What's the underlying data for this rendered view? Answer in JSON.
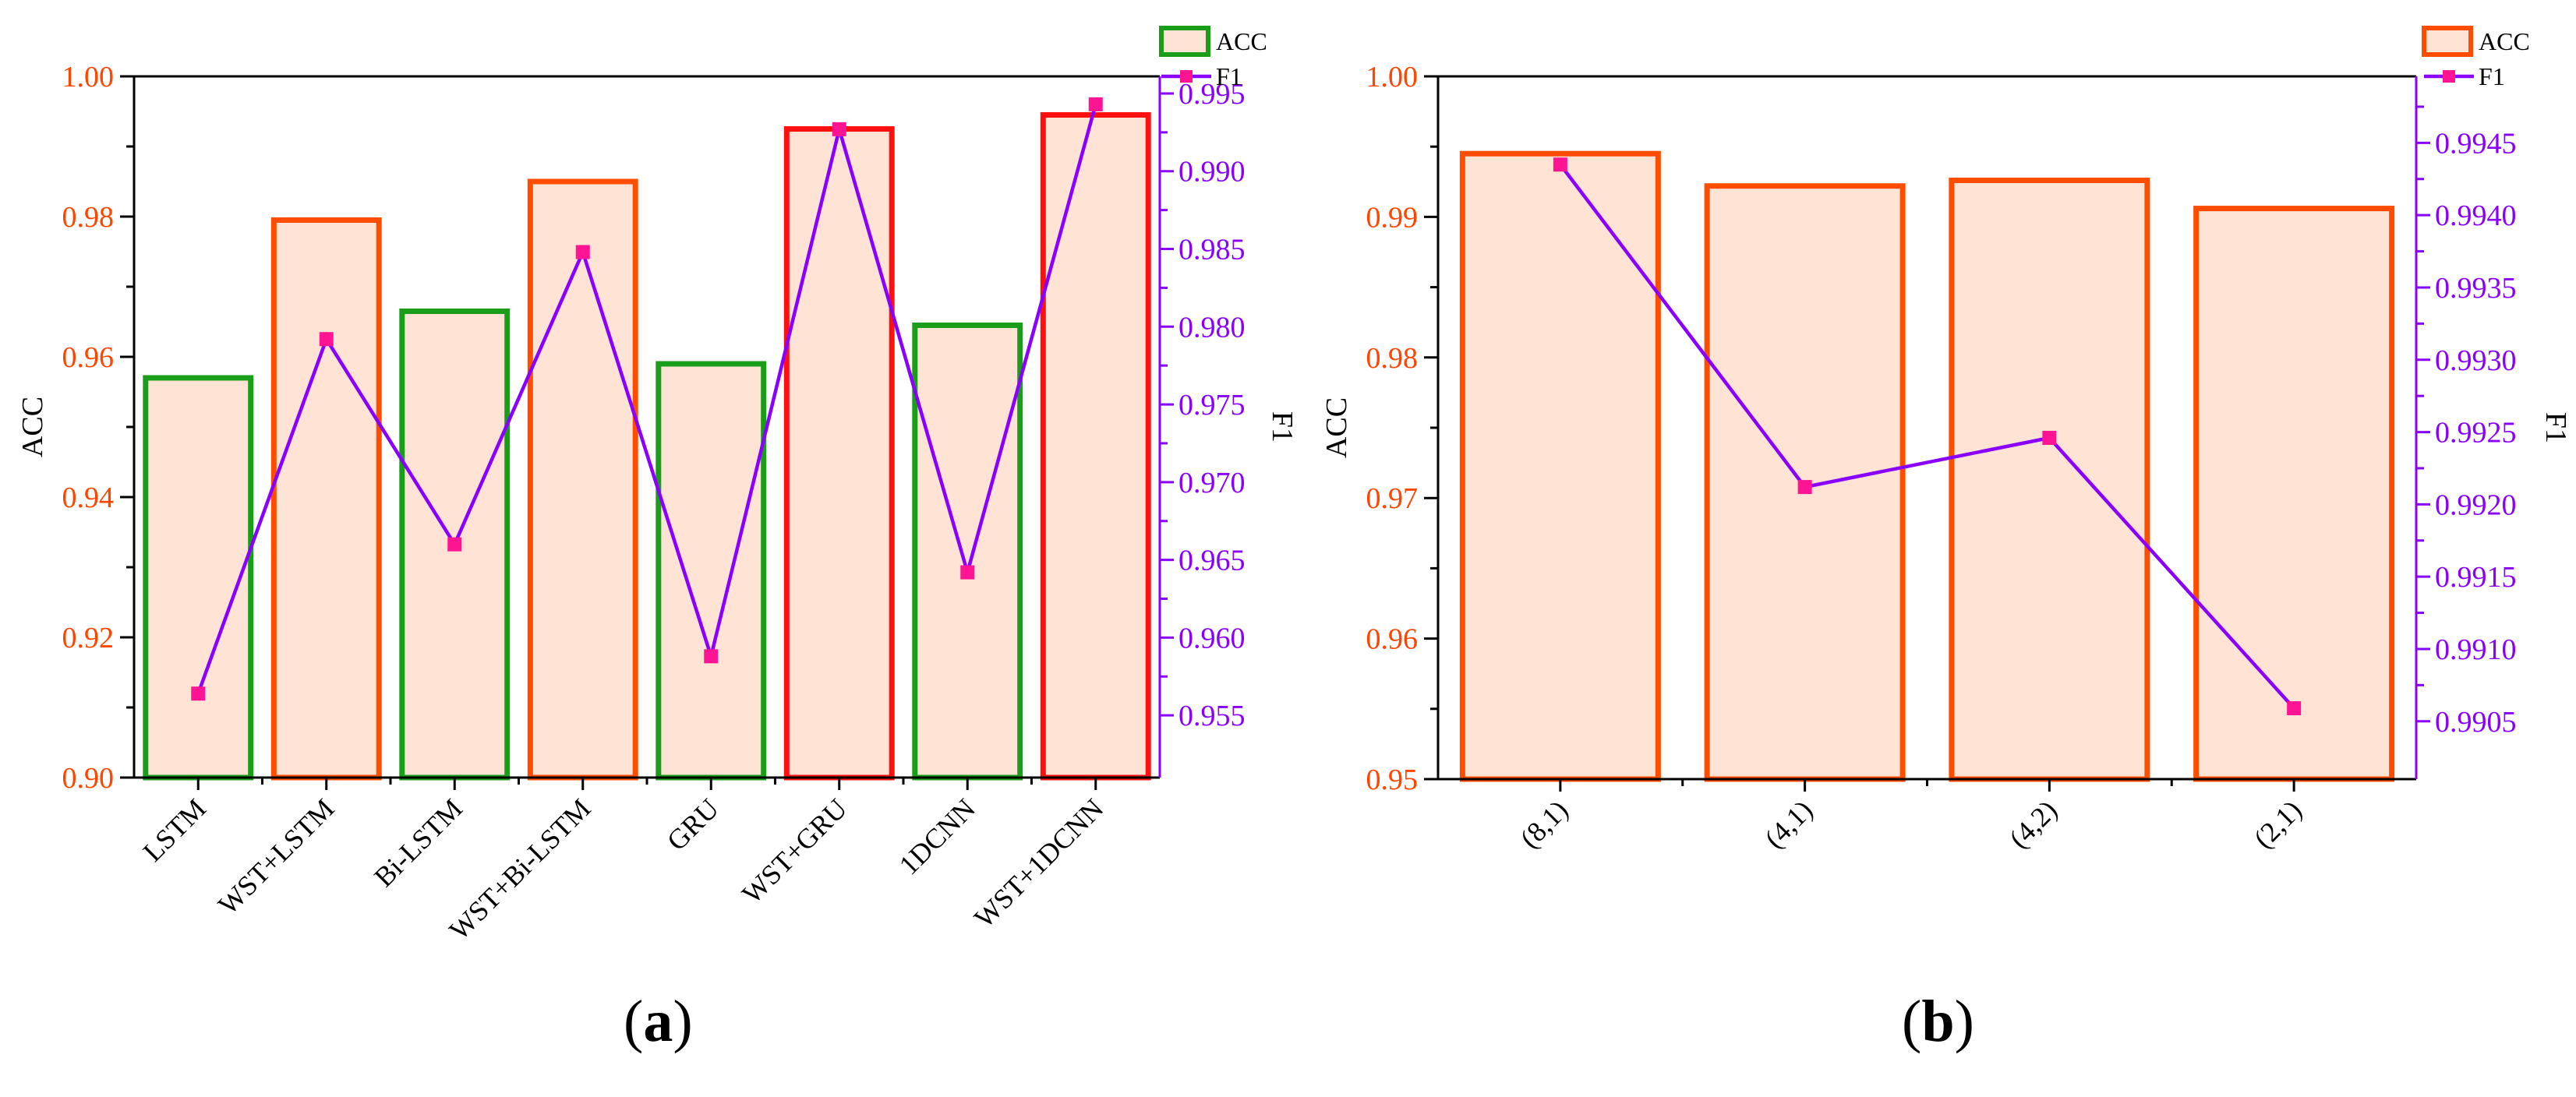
{
  "colors": {
    "acc_axis": "#FF4500",
    "f1_line": "#8A00FF",
    "f1_marker": "#FF1493",
    "bar_fill": "#FFE4D6",
    "bar_green": "#1A9E1A",
    "bar_orange": "#FF4D00",
    "bar_red": "#FF1010",
    "axis_black": "#000000"
  },
  "captions": [
    {
      "open": "(",
      "letter": "a",
      "close": ")"
    },
    {
      "open": "(",
      "letter": "b",
      "close": ")"
    }
  ],
  "chart_data": [
    {
      "type": "bar+line",
      "panel": "a",
      "categories": [
        "LSTM",
        "WST+LSTM",
        "Bi-LSTM",
        "WST+Bi-LSTM",
        "GRU",
        "WST+GRU",
        "1DCNN",
        "WST+1DCNN"
      ],
      "series": [
        {
          "name": "ACC",
          "kind": "bar",
          "axis": "left",
          "values": [
            0.957,
            0.9795,
            0.9665,
            0.985,
            0.959,
            0.9925,
            0.9645,
            0.9945
          ],
          "edge_colors": [
            "green",
            "orange",
            "green",
            "orange",
            "green",
            "red",
            "green",
            "red"
          ]
        },
        {
          "name": "F1",
          "kind": "line",
          "axis": "right",
          "values": [
            0.9564,
            0.9792,
            0.966,
            0.9848,
            0.9588,
            0.9927,
            0.9642,
            0.9943
          ]
        }
      ],
      "ylabel": "ACC",
      "y2label": "F1",
      "ylim": [
        0.9,
        1.0
      ],
      "y2lim": [
        0.951,
        0.9961
      ],
      "yticks": [
        0.9,
        0.92,
        0.94,
        0.96,
        0.98,
        1.0
      ],
      "yticklabels": [
        "0.90",
        "0.92",
        "0.94",
        "0.96",
        "0.98",
        "1.00"
      ],
      "y2ticks": [
        0.955,
        0.96,
        0.965,
        0.97,
        0.975,
        0.98,
        0.985,
        0.99,
        0.995
      ],
      "y2ticklabels": [
        "0.955",
        "0.960",
        "0.965",
        "0.970",
        "0.975",
        "0.980",
        "0.985",
        "0.990",
        "0.995"
      ],
      "legend": {
        "position": "top-right",
        "entries": [
          "ACC",
          "F1"
        ],
        "acc_swatch": "green"
      }
    },
    {
      "type": "bar+line",
      "panel": "b",
      "categories": [
        "(8,1)",
        "(4,1)",
        "(4,2)",
        "(2,1)"
      ],
      "series": [
        {
          "name": "ACC",
          "kind": "bar",
          "axis": "left",
          "values": [
            0.9945,
            0.9922,
            0.9926,
            0.9906
          ],
          "edge_colors": [
            "orange",
            "orange",
            "orange",
            "orange"
          ]
        },
        {
          "name": "F1",
          "kind": "line",
          "axis": "right",
          "values": [
            0.99435,
            0.99212,
            0.99246,
            0.99059
          ]
        }
      ],
      "ylabel": "ACC",
      "y2label": "F1",
      "ylim": [
        0.95,
        1.0
      ],
      "y2lim": [
        0.9901,
        0.99496
      ],
      "yticks": [
        0.95,
        0.96,
        0.97,
        0.98,
        0.99,
        1.0
      ],
      "yticklabels": [
        "0.95",
        "0.96",
        "0.97",
        "0.98",
        "0.99",
        "1.00"
      ],
      "y2ticks": [
        0.9905,
        0.991,
        0.9915,
        0.992,
        0.9925,
        0.993,
        0.9935,
        0.994,
        0.9945
      ],
      "y2ticklabels": [
        "0.9905",
        "0.9910",
        "0.9915",
        "0.9920",
        "0.9925",
        "0.9930",
        "0.9935",
        "0.9940",
        "0.9945"
      ],
      "legend": {
        "position": "top-right",
        "entries": [
          "ACC",
          "F1"
        ],
        "acc_swatch": "orange"
      }
    }
  ]
}
